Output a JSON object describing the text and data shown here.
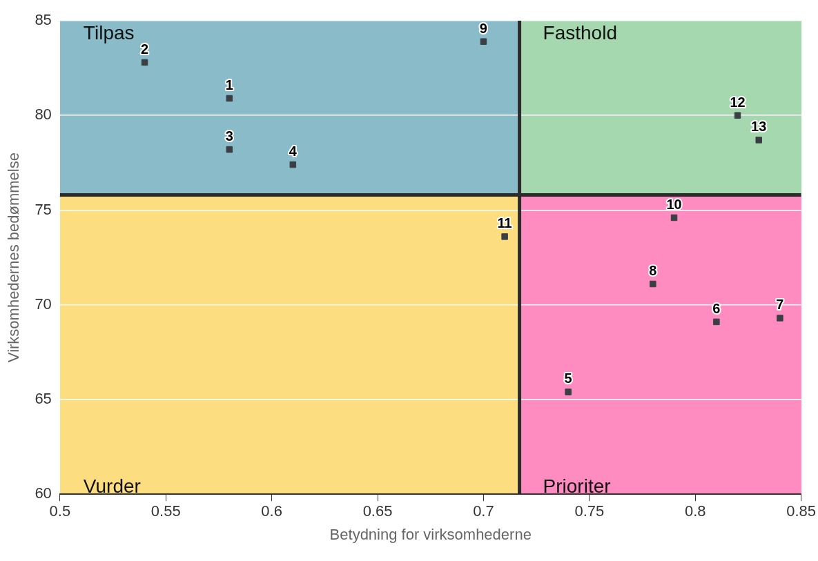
{
  "chart_data": {
    "type": "scatter",
    "xlabel": "Betydning for virksomhederne",
    "ylabel": "Virksomhedernes bedømmelse",
    "x": [
      0.58,
      0.54,
      0.58,
      0.61,
      0.74,
      0.81,
      0.84,
      0.78,
      0.7,
      0.79,
      0.71,
      0.82,
      0.83
    ],
    "series": [
      {
        "color": "#3a3f44",
        "values": [
          80.9,
          82.8,
          78.2,
          77.4,
          65.4,
          69.1,
          69.3,
          71.1,
          83.9,
          74.6,
          73.6,
          80.0,
          78.7
        ]
      }
    ],
    "value_labels": [
      "1",
      "2",
      "3",
      "4",
      "5",
      "6",
      "7",
      "8",
      "9",
      "10",
      "11",
      "12",
      "13"
    ],
    "xlim": [
      0.5,
      0.85
    ],
    "xticks": [
      0.5,
      0.55,
      0.6,
      0.65,
      0.7,
      0.75,
      0.8,
      0.85
    ],
    "ylim": [
      60,
      85
    ],
    "yticks": [
      60,
      65,
      70,
      75,
      80,
      85
    ],
    "annotations": [
      "Tilpas",
      "Fasthold",
      "Vurder",
      "Prioriter"
    ],
    "ref_lines": [
      {
        "axis": "x",
        "value": 0.717,
        "color": "#2b2b2b"
      },
      {
        "axis": "y",
        "value": 75.8,
        "color": "#2b2b2b"
      }
    ],
    "grid": "y",
    "marker": "square",
    "legend": false
  }
}
